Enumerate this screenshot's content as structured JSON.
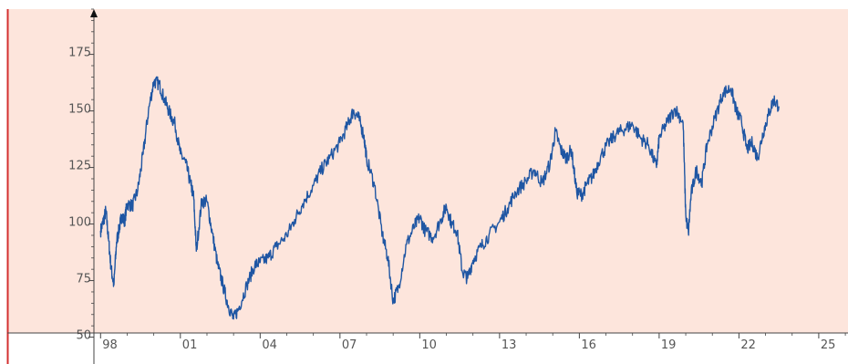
{
  "chart_data": {
    "type": "line",
    "title": "",
    "xlabel": "",
    "ylabel": "",
    "x_unit": "year",
    "xlim": [
      1997.75,
      2026.1
    ],
    "ylim": [
      47,
      195
    ],
    "x_ticks": [
      1998,
      2001,
      2004,
      2007,
      2010,
      2013,
      2016,
      2019,
      2022,
      2025
    ],
    "x_tick_labels": [
      "98",
      "01",
      "04",
      "07",
      "10",
      "13",
      "16",
      "19",
      "22",
      "25"
    ],
    "y_ticks": [
      50,
      75,
      100,
      125,
      150,
      175
    ],
    "y_tick_labels": [
      "50",
      "75",
      "100",
      "125",
      "150",
      "175"
    ],
    "grid": false,
    "legend": "none",
    "colors": {
      "background": "#fde5dc",
      "axis": "#444444",
      "left_edge": "#d32f2f",
      "series": "#1f56a3"
    },
    "series": [
      {
        "x": [
          1998.0,
          1998.1,
          1998.2,
          1998.3,
          1998.4,
          1998.5,
          1998.6,
          1998.7,
          1998.8,
          1998.9,
          1999.0,
          1999.2,
          1999.4,
          1999.6,
          1999.8,
          2000.0,
          2000.2,
          2000.4,
          2000.6,
          2000.8,
          2001.0,
          2001.2,
          2001.4,
          2001.5,
          2001.6,
          2001.8,
          2002.0,
          2002.2,
          2002.4,
          2002.6,
          2002.8,
          2003.0,
          2003.2,
          2003.5,
          2003.8,
          2004.0,
          2004.3,
          2004.6,
          2005.0,
          2005.3,
          2005.6,
          2006.0,
          2006.3,
          2006.6,
          2007.0,
          2007.3,
          2007.5,
          2007.7,
          2007.9,
          2008.0,
          2008.3,
          2008.6,
          2008.8,
          2009.0,
          2009.2,
          2009.5,
          2009.8,
          2010.0,
          2010.2,
          2010.5,
          2010.8,
          2011.0,
          2011.2,
          2011.4,
          2011.6,
          2011.8,
          2012.0,
          2012.3,
          2012.6,
          2013.0,
          2013.3,
          2013.6,
          2014.0,
          2014.3,
          2014.6,
          2014.9,
          2015.1,
          2015.3,
          2015.5,
          2015.7,
          2015.9,
          2016.1,
          2016.3,
          2016.5,
          2016.8,
          2017.1,
          2017.4,
          2017.7,
          2018.0,
          2018.3,
          2018.6,
          2018.9,
          2019.0,
          2019.3,
          2019.6,
          2019.9,
          2020.0,
          2020.1,
          2020.2,
          2020.4,
          2020.6,
          2020.8,
          2021.1,
          2021.4,
          2021.7,
          2021.9,
          2022.1,
          2022.3,
          2022.5,
          2022.7,
          2022.9,
          2023.1,
          2023.3,
          2023.5
        ],
        "y": [
          97,
          101,
          106,
          93,
          80,
          73,
          92,
          98,
          104,
          101,
          109,
          108,
          115,
          131,
          150,
          163,
          162,
          155,
          149,
          144,
          131,
          127,
          117,
          112,
          88,
          110,
          110,
          96,
          82,
          73,
          64,
          58,
          63,
          73,
          82,
          83,
          85,
          90,
          95,
          102,
          109,
          117,
          124,
          129,
          136,
          144,
          150,
          147,
          139,
          129,
          117,
          95,
          85,
          66,
          72,
          91,
          99,
          103,
          97,
          94,
          102,
          108,
          100,
          97,
          79,
          76,
          84,
          90,
          95,
          101,
          107,
          114,
          119,
          124,
          118,
          127,
          141,
          133,
          129,
          133,
          114,
          113,
          118,
          121,
          130,
          136,
          140,
          142,
          144,
          138,
          135,
          125,
          138,
          145,
          151,
          145,
          104,
          96,
          113,
          124,
          118,
          135,
          147,
          158,
          160,
          150,
          145,
          133,
          136,
          129,
          140,
          148,
          155,
          152
        ]
      }
    ]
  }
}
